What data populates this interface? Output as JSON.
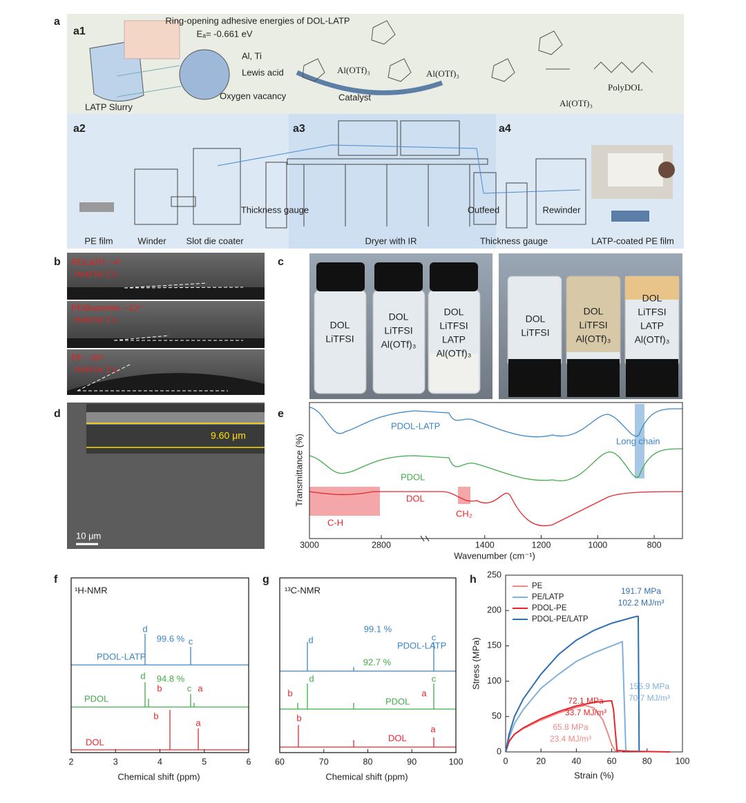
{
  "panel_a": {
    "label": "a",
    "a1": {
      "label": "a1",
      "title": "Ring-opening adhesive energies of DOL-LATP",
      "energy": "Eₐ= -0.661 eV",
      "metals": "Al, Ti",
      "lewis": "Lewis acid",
      "vacancy": "Oxygen vacancy",
      "slurry": "LATP Slurry",
      "catalyst": "Catalyst",
      "chem_labels": [
        "Al(OTf)₃",
        "Al(OTf)₃",
        "Al(OTf)₃",
        "PolyDOL"
      ]
    },
    "a2": {
      "label": "a2",
      "labels": [
        "PE film",
        "Winder",
        "Slot die coater",
        "Thickness gauge"
      ]
    },
    "a3": {
      "label": "a3",
      "labels": [
        "Dryer with IR"
      ]
    },
    "a4": {
      "label": "a4",
      "labels": [
        "Outfeed",
        "Rewinder",
        "Thickness gauge",
        "LATP-coated PE film"
      ]
    }
  },
  "panel_b": {
    "label": "b",
    "rows": [
      {
        "angle": "PE/LATP: ~4°",
        "hold": "Hold for 2 s"
      },
      {
        "angle": "PE/Boehmite: ~13°",
        "hold": "Hold for 2 s"
      },
      {
        "angle": "PE: ~30°",
        "hold": "Hold for 2 s"
      }
    ]
  },
  "panel_c": {
    "label": "c",
    "left_vials": [
      [
        "DOL",
        "LiTFSI"
      ],
      [
        "DOL",
        "LiTFSI",
        "Al(OTf)₃"
      ],
      [
        "DOL",
        "LiTFSI",
        "LATP",
        "Al(OTf)₃"
      ]
    ],
    "right_vials": [
      [
        "DOL",
        "LiTFSI"
      ],
      [
        "DOL",
        "LiTFSI",
        "Al(OTf)₃"
      ],
      [
        "DOL",
        "LiTFSI",
        "LATP",
        "Al(OTf)₃"
      ]
    ]
  },
  "panel_d": {
    "label": "d",
    "thickness": "9.60 μm",
    "scale_bar": "10 μm"
  },
  "panel_e": {
    "label": "e",
    "ylabel": "Transmittance (%)",
    "xlabel": "Wavenumber (cm⁻¹)",
    "xticks": [
      3000,
      2800,
      1400,
      1200,
      1000,
      800
    ],
    "traces": [
      "PDOL-LATP",
      "PDOL",
      "DOL"
    ],
    "annotations": [
      "C-H",
      "CH₂",
      "Long chain"
    ]
  },
  "panel_f": {
    "label": "f",
    "method": "¹H-NMR",
    "xlabel": "Chemical shift (ppm)",
    "xlim": [
      2,
      6
    ],
    "xticks": [
      2,
      3,
      4,
      5,
      6
    ],
    "traces": [
      "PDOL-LATP",
      "PDOL",
      "DOL"
    ],
    "ratios": [
      "99.6 %",
      "94.8 %"
    ],
    "peak_labels": [
      "d",
      "c",
      "d",
      "b",
      "c",
      "a",
      "b",
      "a"
    ]
  },
  "panel_g": {
    "label": "g",
    "method": "¹³C-NMR",
    "xlabel": "Chemical shift (ppm)",
    "xlim": [
      60,
      100
    ],
    "xticks": [
      60,
      70,
      80,
      90,
      100
    ],
    "traces": [
      "PDOL-LATP",
      "PDOL",
      "DOL"
    ],
    "ratios": [
      "99.1 %",
      "92.7 %"
    ],
    "peak_labels": [
      "d",
      "c",
      "b",
      "d",
      "a",
      "c",
      "b",
      "a"
    ]
  },
  "chart_data": {
    "type": "line",
    "label": "h",
    "xlabel": "Strain (%)",
    "ylabel": "Stress (MPa)",
    "xlim": [
      0,
      100
    ],
    "ylim": [
      0,
      250
    ],
    "xticks": [
      0,
      20,
      40,
      60,
      80,
      100
    ],
    "yticks": [
      0,
      50,
      100,
      150,
      200,
      250
    ],
    "legend": "top-left",
    "series": [
      {
        "name": "PE",
        "color": "#f08a8a",
        "x": [
          0,
          2,
          5,
          10,
          20,
          30,
          40,
          45,
          50,
          55,
          58,
          60,
          62,
          66
        ],
        "values": [
          0,
          15,
          25,
          33,
          45,
          55,
          63,
          65.8,
          62,
          45,
          25,
          10,
          2,
          0
        ]
      },
      {
        "name": "PE/LATP",
        "color": "#7fb0dc",
        "x": [
          0,
          2,
          5,
          10,
          20,
          30,
          40,
          50,
          60,
          65,
          66,
          67,
          68
        ],
        "values": [
          0,
          20,
          40,
          60,
          90,
          110,
          128,
          140,
          150,
          155,
          155.9,
          80,
          0
        ]
      },
      {
        "name": "PDOL-PE",
        "color": "#e8262a",
        "x": [
          0,
          2,
          5,
          10,
          20,
          30,
          40,
          50,
          58,
          60,
          61,
          62,
          63,
          70,
          93
        ],
        "values": [
          0,
          15,
          25,
          34,
          47,
          57,
          65,
          70,
          72,
          72.1,
          60,
          30,
          2,
          1,
          0
        ]
      },
      {
        "name": "PDOL-PE/LATP",
        "color": "#2e6fb0",
        "x": [
          0,
          2,
          5,
          10,
          20,
          30,
          40,
          50,
          60,
          70,
          74,
          75,
          75.5
        ],
        "values": [
          0,
          25,
          50,
          75,
          110,
          138,
          158,
          172,
          182,
          189,
          191.7,
          191.7,
          0
        ]
      }
    ],
    "annotations": [
      {
        "lines": [
          "191.7 MPa",
          "102.2 MJ/m³"
        ],
        "color": "#2e6fb0"
      },
      {
        "lines": [
          "155.9 MPa",
          "70.7 MJ/m³"
        ],
        "color": "#7fb0dc"
      },
      {
        "lines": [
          "72.1 MPa",
          "33.7 MJ/m³"
        ],
        "color": "#e8262a"
      },
      {
        "lines": [
          "65.8 MPa",
          "23.4 MJ/m³"
        ],
        "color": "#f08a8a"
      }
    ]
  }
}
